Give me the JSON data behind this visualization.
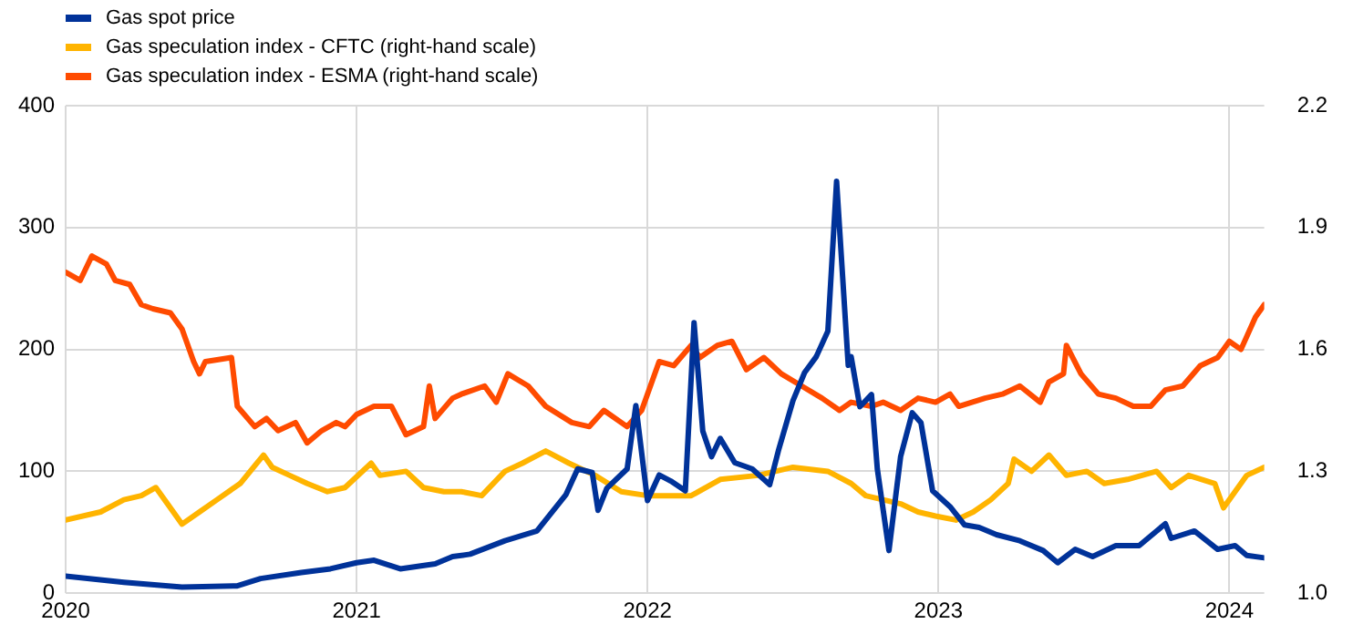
{
  "chart_data": {
    "type": "line",
    "xlim": [
      2020,
      2024.12
    ],
    "xticks": [
      2020,
      2021,
      2022,
      2023,
      2024
    ],
    "ylim": [
      0,
      400
    ],
    "yticks": [
      0,
      100,
      200,
      300,
      400
    ],
    "y2lim": [
      1,
      2.2
    ],
    "y2ticks": [
      {
        "value": 1,
        "label": "1.0"
      },
      1.3,
      1.6,
      1.9,
      2.2
    ],
    "grid": true,
    "legend": "top left",
    "marker": "none",
    "line_style": "solid",
    "series": [
      {
        "name": "Gas spot price",
        "color": "#003299",
        "x": [
          2020.0,
          2020.2,
          2020.4,
          2020.59,
          2020.67,
          2020.81,
          2020.91,
          2021.0,
          2021.06,
          2021.15,
          2021.27,
          2021.33,
          2021.39,
          2021.51,
          2021.62,
          2021.72,
          2021.76,
          2021.81,
          2021.83,
          2021.86,
          2021.93,
          2021.96,
          2022.0,
          2022.04,
          2022.08,
          2022.13,
          2022.16,
          2022.19,
          2022.22,
          2022.25,
          2022.3,
          2022.36,
          2022.42,
          2022.45,
          2022.5,
          2022.54,
          2022.58,
          2022.62,
          2022.65,
          2022.69,
          2022.7,
          2022.73,
          2022.77,
          2022.79,
          2022.83,
          2022.87,
          2022.91,
          2022.94,
          2022.98,
          2023.04,
          2023.09,
          2023.14,
          2023.2,
          2023.28,
          2023.36,
          2023.41,
          2023.47,
          2023.53,
          2023.61,
          2023.69,
          2023.78,
          2023.8,
          2023.88,
          2023.96,
          2024.02,
          2024.06,
          2024.12
        ],
        "values": [
          14,
          9,
          5,
          6,
          12,
          17,
          20,
          25,
          27,
          20,
          24,
          30,
          32,
          43,
          51,
          81,
          102,
          99,
          68,
          86,
          102,
          154,
          76,
          97,
          92,
          84,
          222,
          133,
          112,
          127,
          107,
          102,
          89,
          117,
          158,
          181,
          194,
          215,
          338,
          187,
          194,
          153,
          163,
          102,
          35,
          112,
          148,
          140,
          84,
          71,
          56,
          54,
          48,
          43,
          35,
          25,
          36,
          30,
          39,
          39,
          57,
          45,
          51,
          36,
          39,
          31,
          29
        ]
      },
      {
        "name": "Gas speculation index - CFTC (right-hand scale)",
        "color": "#ffb400",
        "axis": "y2",
        "x": [
          2020.0,
          2020.12,
          2020.2,
          2020.26,
          2020.31,
          2020.37,
          2020.4,
          2020.46,
          2020.52,
          2020.6,
          2020.68,
          2020.71,
          2020.77,
          2020.83,
          2020.9,
          2020.96,
          2021.05,
          2021.08,
          2021.17,
          2021.23,
          2021.3,
          2021.36,
          2021.43,
          2021.51,
          2021.57,
          2021.65,
          2021.73,
          2021.82,
          2021.91,
          2022.0,
          2022.13,
          2022.15,
          2022.25,
          2022.38,
          2022.5,
          2022.62,
          2022.7,
          2022.75,
          2022.81,
          2022.87,
          2022.93,
          2022.99,
          2023.06,
          2023.12,
          2023.18,
          2023.24,
          2023.26,
          2023.32,
          2023.38,
          2023.44,
          2023.51,
          2023.57,
          2023.65,
          2023.75,
          2023.8,
          2023.86,
          2023.95,
          2023.98,
          2024.06,
          2024.12
        ],
        "values": [
          1.18,
          1.2,
          1.23,
          1.24,
          1.26,
          1.2,
          1.17,
          1.2,
          1.23,
          1.27,
          1.34,
          1.31,
          1.29,
          1.27,
          1.25,
          1.26,
          1.32,
          1.29,
          1.3,
          1.26,
          1.25,
          1.25,
          1.24,
          1.3,
          1.32,
          1.35,
          1.32,
          1.29,
          1.25,
          1.24,
          1.24,
          1.24,
          1.28,
          1.29,
          1.31,
          1.3,
          1.27,
          1.24,
          1.23,
          1.22,
          1.2,
          1.19,
          1.18,
          1.2,
          1.23,
          1.27,
          1.33,
          1.3,
          1.34,
          1.29,
          1.3,
          1.27,
          1.28,
          1.3,
          1.26,
          1.29,
          1.27,
          1.21,
          1.29,
          1.31
        ]
      },
      {
        "name": "Gas speculation index - ESMA (right-hand scale)",
        "color": "#ff4b00",
        "axis": "y2",
        "x": [
          2020.0,
          2020.05,
          2020.09,
          2020.14,
          2020.17,
          2020.22,
          2020.26,
          2020.3,
          2020.36,
          2020.4,
          2020.44,
          2020.46,
          2020.48,
          2020.57,
          2020.59,
          2020.65,
          2020.69,
          2020.73,
          2020.79,
          2020.83,
          2020.88,
          2020.93,
          2020.96,
          2021.0,
          2021.06,
          2021.12,
          2021.17,
          2021.23,
          2021.25,
          2021.27,
          2021.33,
          2021.36,
          2021.44,
          2021.48,
          2021.52,
          2021.59,
          2021.65,
          2021.74,
          2021.8,
          2021.85,
          2021.93,
          2021.98,
          2022.04,
          2022.09,
          2022.15,
          2022.18,
          2022.24,
          2022.29,
          2022.34,
          2022.4,
          2022.46,
          2022.53,
          2022.6,
          2022.66,
          2022.7,
          2022.77,
          2022.81,
          2022.87,
          2022.93,
          2022.99,
          2023.04,
          2023.07,
          2023.16,
          2023.22,
          2023.28,
          2023.35,
          2023.38,
          2023.43,
          2023.44,
          2023.49,
          2023.55,
          2023.61,
          2023.67,
          2023.73,
          2023.78,
          2023.84,
          2023.9,
          2023.96,
          2024.0,
          2024.04,
          2024.09,
          2024.12
        ],
        "values": [
          1.79,
          1.77,
          1.83,
          1.81,
          1.77,
          1.76,
          1.71,
          1.7,
          1.69,
          1.65,
          1.57,
          1.54,
          1.57,
          1.58,
          1.46,
          1.41,
          1.43,
          1.4,
          1.42,
          1.37,
          1.4,
          1.42,
          1.41,
          1.44,
          1.46,
          1.46,
          1.39,
          1.41,
          1.51,
          1.43,
          1.48,
          1.49,
          1.51,
          1.47,
          1.54,
          1.51,
          1.46,
          1.42,
          1.41,
          1.45,
          1.41,
          1.45,
          1.57,
          1.56,
          1.61,
          1.58,
          1.61,
          1.62,
          1.55,
          1.58,
          1.54,
          1.51,
          1.48,
          1.45,
          1.47,
          1.46,
          1.47,
          1.45,
          1.48,
          1.47,
          1.49,
          1.46,
          1.48,
          1.49,
          1.51,
          1.47,
          1.52,
          1.54,
          1.61,
          1.54,
          1.49,
          1.48,
          1.46,
          1.46,
          1.5,
          1.51,
          1.56,
          1.58,
          1.62,
          1.6,
          1.68,
          1.71
        ]
      }
    ]
  }
}
